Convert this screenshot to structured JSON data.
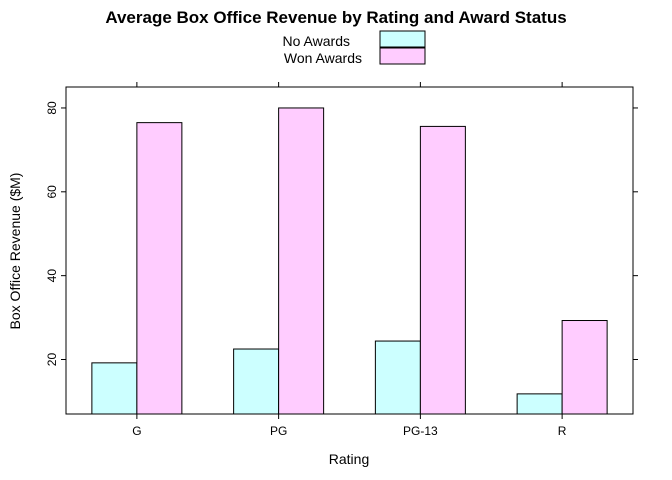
{
  "chart_data": {
    "type": "bar",
    "title": "Average Box Office Revenue by Rating and Award Status",
    "xlabel": "Rating",
    "ylabel": "Box Office Revenue ($M)",
    "categories": [
      "G",
      "PG",
      "PG-13",
      "R"
    ],
    "series": [
      {
        "name": "No Awards",
        "values": [
          19.2,
          22.5,
          24.4,
          11.8
        ],
        "color": "#ccffff"
      },
      {
        "name": "Won Awards",
        "values": [
          76.5,
          80.0,
          75.6,
          29.3
        ],
        "color": "#ffccff"
      }
    ],
    "ylim": [
      7,
      85
    ],
    "yticks": [
      20,
      40,
      60,
      80
    ],
    "grid": false,
    "legend_position": "top-center"
  }
}
